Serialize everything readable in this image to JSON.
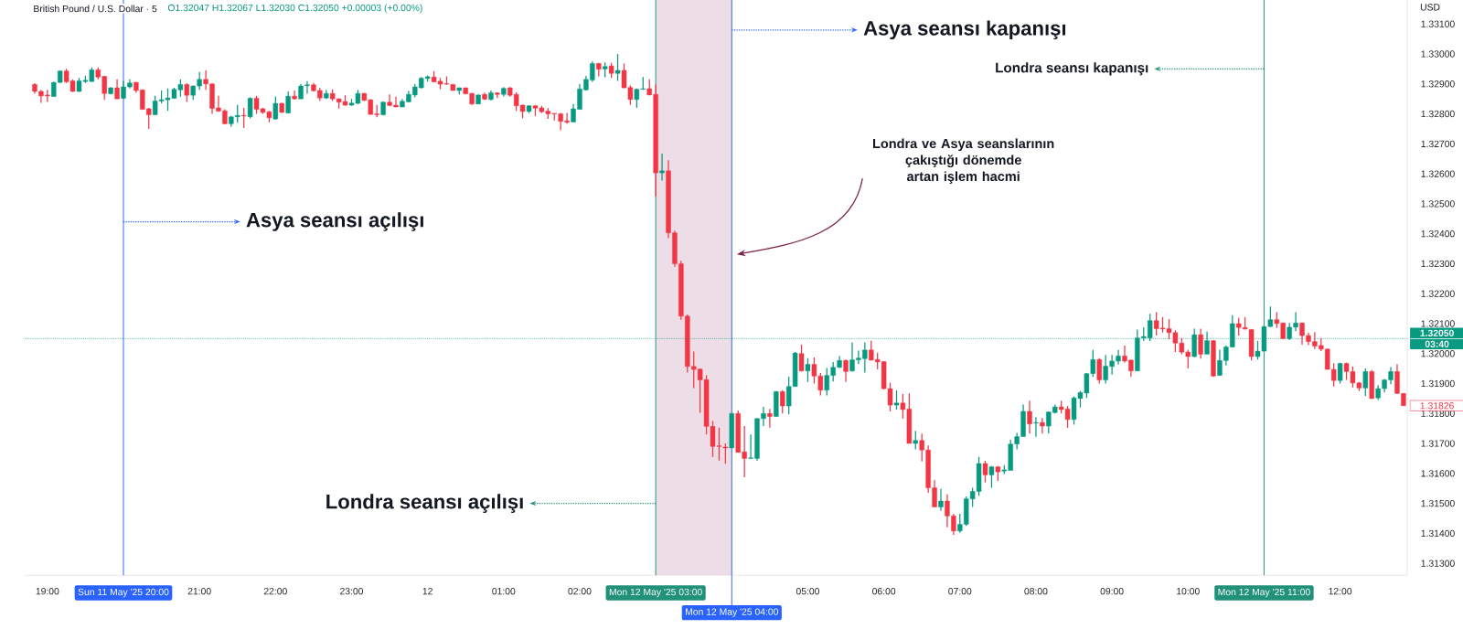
{
  "chart_data": {
    "type": "candlestick",
    "title": "British Pound / U.S. Dollar · 5",
    "ylabel": "USD",
    "annotations": [
      {
        "text": "Asya seansı açılışı",
        "x": "2025-05-11T20:00",
        "y": 1.3244
      },
      {
        "text": "Asya seansı kapanışı",
        "x": "2025-05-12T04:00",
        "y": 1.3308
      },
      {
        "text": "Londra seansı kapanışı",
        "x": "2025-05-12T11:00",
        "y": 1.3295
      },
      {
        "text": "Londra seansı açılışı",
        "x": "2025-05-12T03:00",
        "y": 1.315
      },
      "Londra ve Asya seanslarının çakıştığı dönemde artan işlem hacmi",
      "O1.32047 H1.32067 L1.32030 C1.32050 +0.00003 (+0.00%)",
      "03:40",
      "1.31826"
    ],
    "xlim": [
      "2025-05-11T18:42",
      "2025-05-12T12:53"
    ],
    "ylim": [
      1.3126,
      1.3318
    ],
    "xticks": [
      {
        "value": "2025-05-11T19:00",
        "label": "19:00"
      },
      {
        "value": "2025-05-11T21:00",
        "label": "21:00"
      },
      {
        "value": "2025-05-11T22:00",
        "label": "22:00"
      },
      {
        "value": "2025-05-11T23:00",
        "label": "23:00"
      },
      {
        "value": "2025-05-12T00:00",
        "label": "12"
      },
      {
        "value": "2025-05-12T01:00",
        "label": "01:00"
      },
      {
        "value": "2025-05-12T02:00",
        "label": "02:00"
      },
      {
        "value": "2025-05-12T05:00",
        "label": "05:00"
      },
      {
        "value": "2025-05-12T06:00",
        "label": "06:00"
      },
      {
        "value": "2025-05-12T07:00",
        "label": "07:00"
      },
      {
        "value": "2025-05-12T08:00",
        "label": "08:00"
      },
      {
        "value": "2025-05-12T09:00",
        "label": "09:00"
      },
      {
        "value": "2025-05-12T10:00",
        "label": "10:00"
      },
      {
        "value": "2025-05-12T12:00",
        "label": "12:00"
      }
    ],
    "yticks": [
      {
        "value": 1.313,
        "label": "1.31300"
      },
      {
        "value": 1.314,
        "label": "1.31400"
      },
      {
        "value": 1.315,
        "label": "1.31500"
      },
      {
        "value": 1.316,
        "label": "1.31600"
      },
      {
        "value": 1.317,
        "label": "1.31700"
      },
      {
        "value": 1.318,
        "label": "1.31800"
      },
      {
        "value": 1.319,
        "label": "1.31900"
      },
      {
        "value": 1.32,
        "label": "1.32000"
      },
      {
        "value": 1.321,
        "label": "1.32100"
      },
      {
        "value": 1.322,
        "label": "1.32200"
      },
      {
        "value": 1.323,
        "label": "1.32300"
      },
      {
        "value": 1.324,
        "label": "1.32400"
      },
      {
        "value": 1.325,
        "label": "1.32500"
      },
      {
        "value": 1.326,
        "label": "1.32600"
      },
      {
        "value": 1.327,
        "label": "1.32700"
      },
      {
        "value": 1.328,
        "label": "1.32800"
      },
      {
        "value": 1.329,
        "label": "1.32900"
      },
      {
        "value": 1.33,
        "label": "1.33000"
      },
      {
        "value": 1.331,
        "label": "1.33100"
      }
    ],
    "ref_lines": [
      {
        "axis": "x",
        "value": "2025-05-11T20:00",
        "label": "Sun 11 May '25 20:00",
        "color": "#2962ff"
      },
      {
        "axis": "x",
        "value": "2025-05-12T03:00",
        "label": "Mon 12 May '25 03:00",
        "color": "#22917a"
      },
      {
        "axis": "x",
        "value": "2025-05-12T04:00",
        "label": "Mon 12 May '25 04:00",
        "color": "#2962ff"
      },
      {
        "axis": "x",
        "value": "2025-05-12T11:00",
        "label": "Mon 12 May '25 11:00",
        "color": "#22917a"
      },
      {
        "axis": "y",
        "value": 1.3205,
        "label": "1.32050",
        "color": "#089981",
        "line_style": "dotted"
      }
    ],
    "bands": [
      {
        "axis": "x",
        "from": "2025-05-12T03:00",
        "to": "2025-05-12T04:00",
        "color": "#ecdde6"
      }
    ],
    "x": [
      "2025-05-11T18:50",
      "2025-05-11T18:55",
      "2025-05-11T19:00",
      "2025-05-11T19:05",
      "2025-05-11T19:10",
      "2025-05-11T19:15",
      "2025-05-11T19:20",
      "2025-05-11T19:25",
      "2025-05-11T19:30",
      "2025-05-11T19:35",
      "2025-05-11T19:40",
      "2025-05-11T19:45",
      "2025-05-11T19:50",
      "2025-05-11T19:55",
      "2025-05-11T20:00",
      "2025-05-11T20:05",
      "2025-05-11T20:10",
      "2025-05-11T20:15",
      "2025-05-11T20:20",
      "2025-05-11T20:25",
      "2025-05-11T20:30",
      "2025-05-11T20:35",
      "2025-05-11T20:40",
      "2025-05-11T20:45",
      "2025-05-11T20:50",
      "2025-05-11T20:55",
      "2025-05-11T21:00",
      "2025-05-11T21:05",
      "2025-05-11T21:10",
      "2025-05-11T21:15",
      "2025-05-11T21:20",
      "2025-05-11T21:25",
      "2025-05-11T21:30",
      "2025-05-11T21:35",
      "2025-05-11T21:40",
      "2025-05-11T21:45",
      "2025-05-11T21:50",
      "2025-05-11T21:55",
      "2025-05-11T22:00",
      "2025-05-11T22:05",
      "2025-05-11T22:10",
      "2025-05-11T22:15",
      "2025-05-11T22:20",
      "2025-05-11T22:25",
      "2025-05-11T22:30",
      "2025-05-11T22:35",
      "2025-05-11T22:40",
      "2025-05-11T22:45",
      "2025-05-11T22:50",
      "2025-05-11T22:55",
      "2025-05-11T23:00",
      "2025-05-11T23:05",
      "2025-05-11T23:10",
      "2025-05-11T23:15",
      "2025-05-11T23:20",
      "2025-05-11T23:25",
      "2025-05-11T23:30",
      "2025-05-11T23:35",
      "2025-05-11T23:40",
      "2025-05-11T23:45",
      "2025-05-11T23:50",
      "2025-05-11T23:55",
      "2025-05-12T00:00",
      "2025-05-12T00:05",
      "2025-05-12T00:10",
      "2025-05-12T00:15",
      "2025-05-12T00:20",
      "2025-05-12T00:25",
      "2025-05-12T00:30",
      "2025-05-12T00:35",
      "2025-05-12T00:40",
      "2025-05-12T00:45",
      "2025-05-12T00:50",
      "2025-05-12T00:55",
      "2025-05-12T01:00",
      "2025-05-12T01:05",
      "2025-05-12T01:10",
      "2025-05-12T01:15",
      "2025-05-12T01:20",
      "2025-05-12T01:25",
      "2025-05-12T01:30",
      "2025-05-12T01:35",
      "2025-05-12T01:40",
      "2025-05-12T01:45",
      "2025-05-12T01:50",
      "2025-05-12T01:55",
      "2025-05-12T02:00",
      "2025-05-12T02:05",
      "2025-05-12T02:10",
      "2025-05-12T02:15",
      "2025-05-12T02:20",
      "2025-05-12T02:25",
      "2025-05-12T02:30",
      "2025-05-12T02:35",
      "2025-05-12T02:40",
      "2025-05-12T02:45",
      "2025-05-12T02:50",
      "2025-05-12T02:55",
      "2025-05-12T03:00",
      "2025-05-12T03:05",
      "2025-05-12T03:10",
      "2025-05-12T03:15",
      "2025-05-12T03:20",
      "2025-05-12T03:25",
      "2025-05-12T03:30",
      "2025-05-12T03:35",
      "2025-05-12T03:40",
      "2025-05-12T03:45",
      "2025-05-12T03:50",
      "2025-05-12T03:55",
      "2025-05-12T04:00",
      "2025-05-12T04:05",
      "2025-05-12T04:10",
      "2025-05-12T04:15",
      "2025-05-12T04:20",
      "2025-05-12T04:25",
      "2025-05-12T04:30",
      "2025-05-12T04:35",
      "2025-05-12T04:40",
      "2025-05-12T04:45",
      "2025-05-12T04:50",
      "2025-05-12T04:55",
      "2025-05-12T05:00",
      "2025-05-12T05:05",
      "2025-05-12T05:10",
      "2025-05-12T05:15",
      "2025-05-12T05:20",
      "2025-05-12T05:25",
      "2025-05-12T05:30",
      "2025-05-12T05:35",
      "2025-05-12T05:40",
      "2025-05-12T05:45",
      "2025-05-12T05:50",
      "2025-05-12T05:55",
      "2025-05-12T06:00",
      "2025-05-12T06:05",
      "2025-05-12T06:10",
      "2025-05-12T06:15",
      "2025-05-12T06:20",
      "2025-05-12T06:25",
      "2025-05-12T06:30",
      "2025-05-12T06:35",
      "2025-05-12T06:40",
      "2025-05-12T06:45",
      "2025-05-12T06:50",
      "2025-05-12T06:55",
      "2025-05-12T07:00",
      "2025-05-12T07:05",
      "2025-05-12T07:10",
      "2025-05-12T07:15",
      "2025-05-12T07:20",
      "2025-05-12T07:25",
      "2025-05-12T07:30",
      "2025-05-12T07:35",
      "2025-05-12T07:40",
      "2025-05-12T07:45",
      "2025-05-12T07:50",
      "2025-05-12T07:55",
      "2025-05-12T08:00",
      "2025-05-12T08:05",
      "2025-05-12T08:10",
      "2025-05-12T08:15",
      "2025-05-12T08:20",
      "2025-05-12T08:25",
      "2025-05-12T08:30",
      "2025-05-12T08:35",
      "2025-05-12T08:40",
      "2025-05-12T08:45",
      "2025-05-12T08:50",
      "2025-05-12T08:55",
      "2025-05-12T09:00",
      "2025-05-12T09:05",
      "2025-05-12T09:10",
      "2025-05-12T09:15",
      "2025-05-12T09:20",
      "2025-05-12T09:25",
      "2025-05-12T09:30",
      "2025-05-12T09:35",
      "2025-05-12T09:40",
      "2025-05-12T09:45",
      "2025-05-12T09:50",
      "2025-05-12T09:55",
      "2025-05-12T10:00",
      "2025-05-12T10:05",
      "2025-05-12T10:10",
      "2025-05-12T10:15",
      "2025-05-12T10:20",
      "2025-05-12T10:25",
      "2025-05-12T10:30",
      "2025-05-12T10:35",
      "2025-05-12T10:40",
      "2025-05-12T10:45",
      "2025-05-12T10:50",
      "2025-05-12T10:55",
      "2025-05-12T11:00",
      "2025-05-12T11:05",
      "2025-05-12T11:10",
      "2025-05-12T11:15",
      "2025-05-12T11:20",
      "2025-05-12T11:25",
      "2025-05-12T11:30",
      "2025-05-12T11:35",
      "2025-05-12T11:40",
      "2025-05-12T11:45",
      "2025-05-12T11:50",
      "2025-05-12T11:55",
      "2025-05-12T12:00",
      "2025-05-12T12:05",
      "2025-05-12T12:10",
      "2025-05-12T12:15",
      "2025-05-12T12:20",
      "2025-05-12T12:25",
      "2025-05-12T12:30",
      "2025-05-12T12:35",
      "2025-05-12T12:40",
      "2025-05-12T12:45",
      "2025-05-12T12:50"
    ],
    "ohlc": [
      [
        1.32898,
        1.32902,
        1.32867,
        1.32875
      ],
      [
        1.32875,
        1.3288,
        1.32837,
        1.3286
      ],
      [
        1.32863,
        1.3288,
        1.3284,
        1.3286
      ],
      [
        1.32858,
        1.32907,
        1.32857,
        1.32905
      ],
      [
        1.32905,
        1.32945,
        1.32903,
        1.32943
      ],
      [
        1.32943,
        1.3295,
        1.32903,
        1.32907
      ],
      [
        1.3291,
        1.32915,
        1.32873,
        1.32875
      ],
      [
        1.32875,
        1.3292,
        1.32873,
        1.3291
      ],
      [
        1.32908,
        1.32927,
        1.32903,
        1.32912
      ],
      [
        1.32908,
        1.32955,
        1.32907,
        1.32947
      ],
      [
        1.32947,
        1.32955,
        1.32915,
        1.32923
      ],
      [
        1.32925,
        1.32927,
        1.32847,
        1.32868
      ],
      [
        1.32867,
        1.32889,
        1.32865,
        1.32887
      ],
      [
        1.32887,
        1.32915,
        1.3285,
        1.3285
      ],
      [
        1.32852,
        1.3291,
        1.3285,
        1.3289
      ],
      [
        1.3289,
        1.32915,
        1.32885,
        1.32903
      ],
      [
        1.32905,
        1.32907,
        1.3287,
        1.32878
      ],
      [
        1.3288,
        1.32882,
        1.32815,
        1.32815
      ],
      [
        1.32817,
        1.3282,
        1.3275,
        1.32797
      ],
      [
        1.32797,
        1.3286,
        1.32797,
        1.32843
      ],
      [
        1.32843,
        1.32878,
        1.32835,
        1.32847
      ],
      [
        1.32847,
        1.32885,
        1.3281,
        1.32853
      ],
      [
        1.32852,
        1.32887,
        1.3285,
        1.32882
      ],
      [
        1.3288,
        1.32915,
        1.32857,
        1.32898
      ],
      [
        1.32898,
        1.32902,
        1.3284,
        1.32862
      ],
      [
        1.32862,
        1.32895,
        1.32847,
        1.32893
      ],
      [
        1.32893,
        1.3294,
        1.3288,
        1.32915
      ],
      [
        1.32915,
        1.32945,
        1.3288,
        1.329
      ],
      [
        1.329,
        1.32902,
        1.328,
        1.32818
      ],
      [
        1.3282,
        1.3286,
        1.32807,
        1.32809
      ],
      [
        1.3281,
        1.32815,
        1.32765,
        1.32767
      ],
      [
        1.32767,
        1.32793,
        1.32757,
        1.3279
      ],
      [
        1.3279,
        1.3283,
        1.3277,
        1.32795
      ],
      [
        1.32795,
        1.3282,
        1.32753,
        1.32793
      ],
      [
        1.3279,
        1.32855,
        1.32785,
        1.32852
      ],
      [
        1.32852,
        1.3286,
        1.328,
        1.32815
      ],
      [
        1.32817,
        1.3282,
        1.328,
        1.32805
      ],
      [
        1.32807,
        1.3281,
        1.32772,
        1.32787
      ],
      [
        1.32783,
        1.32858,
        1.3278,
        1.32835
      ],
      [
        1.32835,
        1.32837,
        1.32803,
        1.32805
      ],
      [
        1.32803,
        1.32875,
        1.32801,
        1.32859
      ],
      [
        1.32859,
        1.32878,
        1.32848,
        1.3285
      ],
      [
        1.3285,
        1.329,
        1.3285,
        1.32893
      ],
      [
        1.32894,
        1.32909,
        1.32867,
        1.32897
      ],
      [
        1.32897,
        1.32903,
        1.32875,
        1.32877
      ],
      [
        1.32878,
        1.32887,
        1.32843,
        1.32853
      ],
      [
        1.32853,
        1.3288,
        1.3285,
        1.32868
      ],
      [
        1.32868,
        1.32882,
        1.32843,
        1.3285
      ],
      [
        1.3285,
        1.32852,
        1.32818,
        1.32839
      ],
      [
        1.32841,
        1.32862,
        1.32827,
        1.32829
      ],
      [
        1.32829,
        1.3285,
        1.32827,
        1.32836
      ],
      [
        1.32835,
        1.3288,
        1.32833,
        1.32868
      ],
      [
        1.32868,
        1.3287,
        1.32843,
        1.32845
      ],
      [
        1.32847,
        1.32849,
        1.32798,
        1.32798
      ],
      [
        1.328,
        1.3283,
        1.32789,
        1.32797
      ],
      [
        1.32797,
        1.32841,
        1.32795,
        1.32839
      ],
      [
        1.32839,
        1.32865,
        1.32825,
        1.32828
      ],
      [
        1.32829,
        1.32857,
        1.32822,
        1.32823
      ],
      [
        1.32823,
        1.3285,
        1.32822,
        1.32842
      ],
      [
        1.3284,
        1.32877,
        1.32838,
        1.32865
      ],
      [
        1.32863,
        1.329,
        1.32855,
        1.3289
      ],
      [
        1.32887,
        1.32923,
        1.32885,
        1.32919
      ],
      [
        1.32918,
        1.32928,
        1.32908,
        1.32924
      ],
      [
        1.32923,
        1.32943,
        1.32905,
        1.32907
      ],
      [
        1.32909,
        1.3292,
        1.32882,
        1.32899
      ],
      [
        1.32901,
        1.32925,
        1.32897,
        1.32899
      ],
      [
        1.32898,
        1.329,
        1.32877,
        1.32878
      ],
      [
        1.32878,
        1.32888,
        1.32865,
        1.32887
      ],
      [
        1.32887,
        1.32888,
        1.32865,
        1.32867
      ],
      [
        1.32868,
        1.3287,
        1.3283,
        1.32833
      ],
      [
        1.32833,
        1.32865,
        1.32832,
        1.32863
      ],
      [
        1.32865,
        1.32871,
        1.32847,
        1.32849
      ],
      [
        1.32848,
        1.32878,
        1.32845,
        1.3287
      ],
      [
        1.3287,
        1.32871,
        1.32853,
        1.32865
      ],
      [
        1.32865,
        1.32889,
        1.32857,
        1.32885
      ],
      [
        1.32887,
        1.32889,
        1.32857,
        1.32862
      ],
      [
        1.32865,
        1.32872,
        1.3281,
        1.32827
      ],
      [
        1.32829,
        1.32831,
        1.32785,
        1.32808
      ],
      [
        1.32808,
        1.32829,
        1.32803,
        1.32827
      ],
      [
        1.32827,
        1.32829,
        1.32793,
        1.32819
      ],
      [
        1.3282,
        1.32827,
        1.32803,
        1.32807
      ],
      [
        1.32809,
        1.32819,
        1.32783,
        1.328
      ],
      [
        1.32802,
        1.32802,
        1.32778,
        1.328
      ],
      [
        1.328,
        1.32803,
        1.32745,
        1.32775
      ],
      [
        1.32777,
        1.32803,
        1.32767,
        1.32772
      ],
      [
        1.32773,
        1.32833,
        1.32772,
        1.32817
      ],
      [
        1.32815,
        1.329,
        1.32815,
        1.32883
      ],
      [
        1.3288,
        1.32927,
        1.32878,
        1.32915
      ],
      [
        1.32913,
        1.32975,
        1.32907,
        1.32968
      ],
      [
        1.32968,
        1.3297,
        1.32925,
        1.32949
      ],
      [
        1.3295,
        1.32972,
        1.32922,
        1.32958
      ],
      [
        1.3296,
        1.3297,
        1.3292,
        1.32935
      ],
      [
        1.32935,
        1.33,
        1.3291,
        1.32945
      ],
      [
        1.32945,
        1.32968,
        1.32885,
        1.32887
      ],
      [
        1.32888,
        1.32895,
        1.3283,
        1.32848
      ],
      [
        1.32848,
        1.32885,
        1.3282,
        1.32882
      ],
      [
        1.32882,
        1.32923,
        1.3288,
        1.32884
      ],
      [
        1.32884,
        1.32915,
        1.32862,
        1.32863
      ],
      [
        1.32865,
        1.32898,
        1.32525,
        1.32603
      ],
      [
        1.32603,
        1.32667,
        1.32577,
        1.3261
      ],
      [
        1.3261,
        1.32645,
        1.32385,
        1.32403
      ],
      [
        1.32403,
        1.3241,
        1.3229,
        1.323
      ],
      [
        1.323,
        1.3231,
        1.32112,
        1.32125
      ],
      [
        1.32125,
        1.3213,
        1.31937,
        1.31957
      ],
      [
        1.31957,
        1.32007,
        1.31885,
        1.31947
      ],
      [
        1.31948,
        1.3195,
        1.31802,
        1.31912
      ],
      [
        1.31913,
        1.31928,
        1.3173,
        1.31757
      ],
      [
        1.31757,
        1.31775,
        1.31655,
        1.3169
      ],
      [
        1.31692,
        1.31753,
        1.31643,
        1.3169
      ],
      [
        1.31688,
        1.317,
        1.31632,
        1.31685
      ],
      [
        1.31685,
        1.31802,
        1.31683,
        1.318
      ],
      [
        1.318,
        1.3181,
        1.3167,
        1.3167
      ],
      [
        1.31672,
        1.31758,
        1.31587,
        1.3165
      ],
      [
        1.3165,
        1.3173,
        1.3165,
        1.31652
      ],
      [
        1.3165,
        1.31785,
        1.31642,
        1.31783
      ],
      [
        1.31783,
        1.31822,
        1.31758,
        1.318
      ],
      [
        1.318,
        1.31815,
        1.31753,
        1.3179
      ],
      [
        1.3179,
        1.31875,
        1.3179,
        1.31873
      ],
      [
        1.31873,
        1.31878,
        1.318,
        1.31825
      ],
      [
        1.31825,
        1.31923,
        1.31798,
        1.3189
      ],
      [
        1.3189,
        1.32005,
        1.3189,
        1.32002
      ],
      [
        1.32,
        1.3203,
        1.3194,
        1.31942
      ],
      [
        1.31942,
        1.31985,
        1.31905,
        1.31964
      ],
      [
        1.31964,
        1.31987,
        1.319,
        1.31925
      ],
      [
        1.31925,
        1.31935,
        1.3186,
        1.31878
      ],
      [
        1.31878,
        1.31952,
        1.3186,
        1.31927
      ],
      [
        1.31927,
        1.31972,
        1.31907,
        1.31954
      ],
      [
        1.31954,
        1.31992,
        1.31952,
        1.31977
      ],
      [
        1.31977,
        1.3198,
        1.31905,
        1.3194
      ],
      [
        1.31942,
        1.32037,
        1.3194,
        1.31979
      ],
      [
        1.31979,
        1.3201,
        1.31965,
        1.31985
      ],
      [
        1.31983,
        1.32037,
        1.31937,
        1.32012
      ],
      [
        1.32012,
        1.32043,
        1.31977,
        1.31978
      ],
      [
        1.3198,
        1.32003,
        1.31947,
        1.31972
      ],
      [
        1.31973,
        1.31975,
        1.3188,
        1.31883
      ],
      [
        1.31883,
        1.31903,
        1.31807,
        1.31828
      ],
      [
        1.31828,
        1.31877,
        1.31813,
        1.31835
      ],
      [
        1.31835,
        1.31865,
        1.31783,
        1.31813
      ],
      [
        1.31815,
        1.31867,
        1.317,
        1.317
      ],
      [
        1.317,
        1.31742,
        1.3168,
        1.3171
      ],
      [
        1.3171,
        1.31733,
        1.3164,
        1.31678
      ],
      [
        1.31678,
        1.31693,
        1.31535,
        1.31552
      ],
      [
        1.31552,
        1.31578,
        1.31488,
        1.31488
      ],
      [
        1.31488,
        1.31548,
        1.31475,
        1.31508
      ],
      [
        1.31508,
        1.3153,
        1.3142,
        1.31458
      ],
      [
        1.31458,
        1.31465,
        1.31395,
        1.31408
      ],
      [
        1.31408,
        1.31465,
        1.31402,
        1.3143
      ],
      [
        1.3143,
        1.31523,
        1.31425,
        1.31515
      ],
      [
        1.31515,
        1.31552,
        1.31488,
        1.3154
      ],
      [
        1.3154,
        1.31655,
        1.31525,
        1.31633
      ],
      [
        1.31633,
        1.31642,
        1.3157,
        1.31595
      ],
      [
        1.31595,
        1.31625,
        1.31552,
        1.31622
      ],
      [
        1.31622,
        1.31625,
        1.31575,
        1.31605
      ],
      [
        1.31608,
        1.31628,
        1.31598,
        1.31612
      ],
      [
        1.3161,
        1.31712,
        1.3161,
        1.31698
      ],
      [
        1.31698,
        1.31735,
        1.3168,
        1.31723
      ],
      [
        1.31723,
        1.3183,
        1.31723,
        1.31807
      ],
      [
        1.31807,
        1.31843,
        1.31733,
        1.31765
      ],
      [
        1.31768,
        1.31788,
        1.31722,
        1.3177
      ],
      [
        1.3177,
        1.31785,
        1.31733,
        1.31758
      ],
      [
        1.31758,
        1.31807,
        1.31733,
        1.31805
      ],
      [
        1.31803,
        1.3183,
        1.318,
        1.31822
      ],
      [
        1.31822,
        1.31843,
        1.318,
        1.31813
      ],
      [
        1.31815,
        1.31825,
        1.31752,
        1.3178
      ],
      [
        1.3178,
        1.31857,
        1.31763,
        1.31852
      ],
      [
        1.3185,
        1.31875,
        1.3182,
        1.3187
      ],
      [
        1.31868,
        1.31935,
        1.31852,
        1.31933
      ],
      [
        1.31933,
        1.32012,
        1.31922,
        1.3198
      ],
      [
        1.3198,
        1.31985,
        1.319,
        1.31912
      ],
      [
        1.31912,
        1.31995,
        1.319,
        1.31958
      ],
      [
        1.31957,
        1.31995,
        1.3193,
        1.31975
      ],
      [
        1.31975,
        1.32012,
        1.31963,
        1.31992
      ],
      [
        1.31992,
        1.32027,
        1.3197,
        1.31975
      ],
      [
        1.31978,
        1.3198,
        1.31922,
        1.31942
      ],
      [
        1.31942,
        1.3208,
        1.31942,
        1.32052
      ],
      [
        1.32052,
        1.32088,
        1.32042,
        1.32057
      ],
      [
        1.32052,
        1.32133,
        1.32042,
        1.3211
      ],
      [
        1.3211,
        1.32138,
        1.3206,
        1.32083
      ],
      [
        1.32085,
        1.32122,
        1.3207,
        1.32082
      ],
      [
        1.32083,
        1.32115,
        1.32048,
        1.3207
      ],
      [
        1.3207,
        1.32078,
        1.32005,
        1.32035
      ],
      [
        1.32035,
        1.32052,
        1.31998,
        1.32005
      ],
      [
        1.32005,
        1.32012,
        1.3195,
        1.3199
      ],
      [
        1.3199,
        1.32083,
        1.31988,
        1.32063
      ],
      [
        1.32063,
        1.32083,
        1.31983,
        1.31998
      ],
      [
        1.31998,
        1.32073,
        1.31998,
        1.32043
      ],
      [
        1.32043,
        1.32045,
        1.31922,
        1.31925
      ],
      [
        1.31927,
        1.32013,
        1.31927,
        1.31977
      ],
      [
        1.31977,
        1.32027,
        1.3196,
        1.32022
      ],
      [
        1.32022,
        1.32128,
        1.3202,
        1.321
      ],
      [
        1.321,
        1.3212,
        1.3206,
        1.32087
      ],
      [
        1.32087,
        1.32122,
        1.3208,
        1.32082
      ],
      [
        1.3208,
        1.32082,
        1.31977,
        1.3199
      ],
      [
        1.3199,
        1.32042,
        1.3198,
        1.32008
      ],
      [
        1.32008,
        1.32093,
        1.32008,
        1.3209
      ],
      [
        1.3209,
        1.32157,
        1.3209,
        1.32113
      ],
      [
        1.32113,
        1.32138,
        1.32085,
        1.321
      ],
      [
        1.32102,
        1.32104,
        1.32048,
        1.3205
      ],
      [
        1.3205,
        1.32102,
        1.32045,
        1.32088
      ],
      [
        1.32088,
        1.32138,
        1.32075,
        1.32102
      ],
      [
        1.32102,
        1.32104,
        1.3203,
        1.3206
      ],
      [
        1.3206,
        1.3207,
        1.32028,
        1.3204
      ],
      [
        1.3204,
        1.32072,
        1.32015,
        1.32025
      ],
      [
        1.32027,
        1.32052,
        1.32008,
        1.32015
      ],
      [
        1.32015,
        1.32017,
        1.31947,
        1.31947
      ],
      [
        1.31947,
        1.31968,
        1.3189,
        1.3191
      ],
      [
        1.3191,
        1.3197,
        1.319,
        1.31967
      ],
      [
        1.31967,
        1.3197,
        1.31912,
        1.3194
      ],
      [
        1.3194,
        1.31957,
        1.31887,
        1.31902
      ],
      [
        1.31902,
        1.31905,
        1.31875,
        1.31885
      ],
      [
        1.31885,
        1.3195,
        1.31858,
        1.3194
      ],
      [
        1.3194,
        1.31945,
        1.31848,
        1.3185
      ],
      [
        1.31852,
        1.31895,
        1.31845,
        1.31883
      ],
      [
        1.31883,
        1.31915,
        1.3187,
        1.31912
      ],
      [
        1.31912,
        1.31955,
        1.31898,
        1.3194
      ],
      [
        1.3194,
        1.31965,
        1.31865,
        1.31867
      ],
      [
        1.31867,
        1.31867,
        1.31826,
        1.31826
      ]
    ],
    "colors": [
      "#f23645",
      "#f23645",
      "#f23645",
      "#089981",
      "#089981",
      "#f23645",
      "#f23645",
      "#089981",
      "#089981",
      "#089981",
      "#f23645",
      "#f23645",
      "#089981",
      "#f23645",
      "#089981",
      "#089981",
      "#f23645",
      "#f23645",
      "#f23645",
      "#089981",
      "#089981",
      "#089981",
      "#089981",
      "#089981",
      "#f23645",
      "#089981",
      "#089981",
      "#f23645",
      "#f23645",
      "#f23645",
      "#f23645",
      "#089981",
      "#089981",
      "#f23645",
      "#089981",
      "#f23645",
      "#f23645",
      "#f23645",
      "#089981",
      "#f23645",
      "#089981",
      "#f23645",
      "#089981",
      "#089981",
      "#f23645",
      "#f23645",
      "#089981",
      "#f23645",
      "#f23645",
      "#f23645",
      "#089981",
      "#089981",
      "#f23645",
      "#f23645",
      "#f23645",
      "#089981",
      "#f23645",
      "#f23645",
      "#089981",
      "#089981",
      "#089981",
      "#089981",
      "#089981",
      "#f23645",
      "#f23645",
      "#f23645",
      "#f23645",
      "#089981",
      "#f23645",
      "#f23645",
      "#089981",
      "#f23645",
      "#089981",
      "#f23645",
      "#089981",
      "#f23645",
      "#f23645",
      "#f23645",
      "#089981",
      "#f23645",
      "#f23645",
      "#f23645",
      "#f23645",
      "#f23645",
      "#f23645",
      "#089981",
      "#089981",
      "#089981",
      "#089981",
      "#f23645",
      "#089981",
      "#f23645",
      "#089981",
      "#f23645",
      "#f23645",
      "#089981",
      "#089981",
      "#f23645",
      "#f23645",
      "#089981",
      "#f23645",
      "#f23645",
      "#f23645",
      "#f23645",
      "#f23645",
      "#f23645",
      "#f23645",
      "#f23645",
      "#f23645",
      "#f23645",
      "#089981",
      "#f23645",
      "#f23645",
      "#089981",
      "#089981",
      "#089981",
      "#f23645",
      "#089981",
      "#f23645",
      "#089981",
      "#089981",
      "#f23645",
      "#089981",
      "#f23645",
      "#f23645",
      "#089981",
      "#089981",
      "#089981",
      "#f23645",
      "#089981",
      "#089981",
      "#089981",
      "#f23645",
      "#f23645",
      "#f23645",
      "#f23645",
      "#089981",
      "#f23645",
      "#f23645",
      "#089981",
      "#f23645",
      "#f23645",
      "#f23645",
      "#089981",
      "#f23645",
      "#f23645",
      "#089981",
      "#089981",
      "#089981",
      "#089981",
      "#f23645",
      "#089981",
      "#f23645",
      "#089981",
      "#089981",
      "#089981",
      "#089981",
      "#f23645",
      "#089981",
      "#f23645",
      "#089981",
      "#089981",
      "#f23645",
      "#f23645",
      "#089981",
      "#089981",
      "#089981",
      "#089981",
      "#f23645",
      "#089981",
      "#089981",
      "#089981",
      "#f23645",
      "#f23645",
      "#089981",
      "#089981",
      "#089981",
      "#f23645",
      "#f23645",
      "#f23645",
      "#f23645",
      "#f23645",
      "#f23645",
      "#089981",
      "#f23645",
      "#089981",
      "#f23645",
      "#089981",
      "#089981",
      "#089981",
      "#f23645",
      "#f23645",
      "#f23645",
      "#089981",
      "#089981",
      "#089981",
      "#f23645",
      "#f23645",
      "#089981",
      "#089981",
      "#f23645",
      "#f23645",
      "#f23645",
      "#f23645",
      "#f23645",
      "#f23645",
      "#089981",
      "#f23645",
      "#f23645",
      "#f23645",
      "#089981",
      "#f23645",
      "#089981",
      "#089981",
      "#089981",
      "#f23645",
      "#f23645"
    ]
  }
}
